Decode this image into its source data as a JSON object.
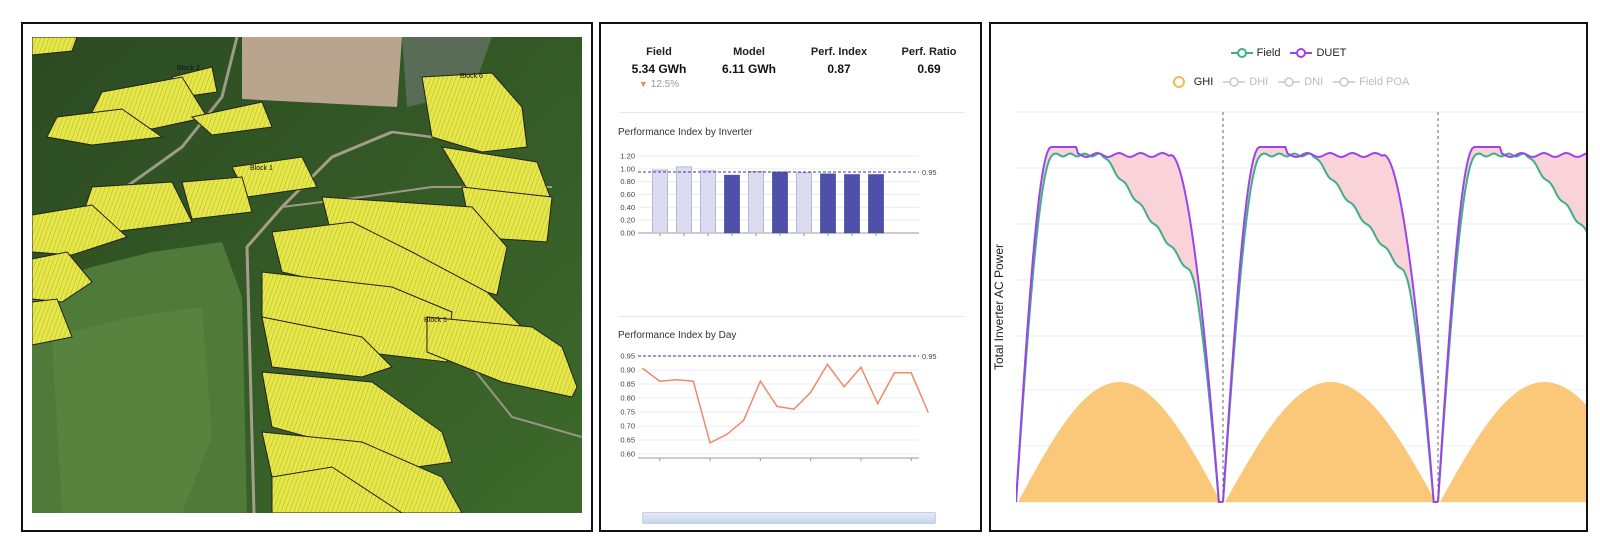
{
  "map": {
    "block_labels": [
      "Block 2",
      "Block 6",
      "Block 1",
      "Block 5"
    ]
  },
  "kpis": [
    {
      "label": "Field",
      "value": "5.34 GWh",
      "delta": "12.5%"
    },
    {
      "label": "Model",
      "value": "6.11 GWh",
      "delta": ""
    },
    {
      "label": "Perf. Index",
      "value": "0.87",
      "delta": ""
    },
    {
      "label": "Perf. Ratio",
      "value": "0.69",
      "delta": ""
    }
  ],
  "inverter_chart": {
    "title": "Performance Index by Inverter",
    "yticks": [
      "1.20",
      "1.00",
      "0.80",
      "0.60",
      "0.40",
      "0.20",
      "0.00"
    ],
    "ylim": [
      0,
      1.2
    ],
    "reference": 0.95,
    "reference_label": "0.95",
    "values": [
      0.98,
      1.03,
      0.97,
      0.9,
      0.96,
      0.95,
      0.94,
      0.92,
      0.91,
      0.91
    ],
    "highlight": [
      false,
      false,
      false,
      true,
      false,
      true,
      false,
      true,
      true,
      true
    ],
    "colors": {
      "light": "#dcdcf0",
      "dark": "#4e4fa8"
    }
  },
  "day_chart": {
    "title": "Performance Index by Day",
    "yticks": [
      "0.95",
      "0.90",
      "0.85",
      "0.80",
      "0.75",
      "0.70",
      "0.65",
      "0.60"
    ],
    "ylim": [
      0.6,
      0.95
    ],
    "reference": 0.95,
    "reference_label": "0.95",
    "values": [
      0.905,
      0.86,
      0.865,
      0.86,
      0.64,
      0.67,
      0.72,
      0.86,
      0.77,
      0.76,
      0.82,
      0.92,
      0.84,
      0.91,
      0.78,
      0.89,
      0.89,
      0.75
    ],
    "color": "#f08a6a"
  },
  "power_chart": {
    "legend_top": [
      {
        "name": "Field",
        "color": "#3fae8a",
        "active": true
      },
      {
        "name": "DUET",
        "color": "#9b45e6",
        "active": true
      }
    ],
    "legend_bottom": [
      {
        "name": "GHI",
        "color": "#f6b94f",
        "active": true
      },
      {
        "name": "DHI",
        "color": "#c8c8c8",
        "active": false
      },
      {
        "name": "DNI",
        "color": "#c8c8c8",
        "active": false
      },
      {
        "name": "Field POA",
        "color": "#c8c8c8",
        "active": false
      }
    ],
    "ylabel": "Total Inverter AC Power",
    "colors": {
      "field": "#3fae8a",
      "duet": "#9b45e6",
      "ghi": "#fbc87a",
      "gap": "#f9d3d8"
    }
  }
}
